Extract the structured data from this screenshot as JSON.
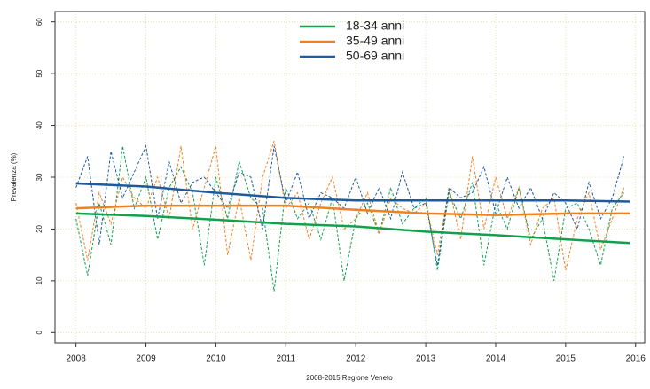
{
  "chart_data": {
    "type": "line",
    "x_label": "2008-2015 Regione Veneto",
    "y_label": "Prevalenza (%)",
    "xlim": [
      2007.7,
      2016.13
    ],
    "ylim": [
      -2,
      62
    ],
    "xticks": [
      2008,
      2009,
      2010,
      2011,
      2012,
      2013,
      2014,
      2015,
      2016
    ],
    "yticks": [
      0,
      10,
      20,
      30,
      40,
      50,
      60
    ],
    "grid": true,
    "legend": "top",
    "x": [
      2008,
      2008.167,
      2008.333,
      2008.5,
      2008.667,
      2008.833,
      2009,
      2009.167,
      2009.333,
      2009.5,
      2009.667,
      2009.833,
      2010,
      2010.167,
      2010.333,
      2010.5,
      2010.667,
      2010.833,
      2011,
      2011.167,
      2011.333,
      2011.5,
      2011.667,
      2011.833,
      2012,
      2012.167,
      2012.333,
      2012.5,
      2012.667,
      2012.833,
      2013,
      2013.167,
      2013.333,
      2013.5,
      2013.667,
      2013.833,
      2014,
      2014.167,
      2014.333,
      2014.5,
      2014.667,
      2014.833,
      2015,
      2015.167,
      2015.333,
      2015.5,
      2015.667,
      2015.833
    ],
    "series": [
      {
        "color": "#12a04e",
        "style": "dashed",
        "values": [
          22,
          11,
          25,
          17,
          36,
          24,
          30,
          18,
          28,
          32,
          27,
          13,
          30,
          22,
          33,
          26,
          24,
          8,
          28,
          22,
          25,
          18,
          26,
          10,
          22,
          25,
          19,
          28,
          21,
          24,
          26,
          12,
          27,
          22,
          29,
          13,
          25,
          20,
          28,
          18,
          22,
          10,
          24,
          25,
          20,
          13,
          24,
          27
        ]
      },
      {
        "color": "#ee8220",
        "style": "dashed",
        "values": [
          25,
          14,
          27,
          21,
          30,
          26,
          24,
          30,
          22,
          36,
          20,
          28,
          36,
          15,
          26,
          14,
          30,
          37,
          24,
          27,
          18,
          25,
          30,
          20,
          22,
          27,
          19,
          26,
          24,
          23,
          25,
          15,
          28,
          18,
          34,
          20,
          30,
          22,
          28,
          17,
          24,
          26,
          12,
          22,
          27,
          16,
          22,
          28
        ]
      },
      {
        "color": "#1e5a9c",
        "style": "dashed",
        "values": [
          28,
          34,
          17,
          35,
          26,
          31,
          36,
          22,
          33,
          25,
          29,
          30,
          27,
          24,
          31,
          30,
          20,
          36,
          25,
          31,
          22,
          27,
          26,
          24,
          30,
          23,
          28,
          22,
          31,
          24,
          25,
          13,
          28,
          26,
          27,
          32,
          23,
          30,
          24,
          28,
          22,
          27,
          25,
          20,
          29,
          22,
          26,
          34
        ]
      },
      {
        "name": "18-34 anni",
        "color": "#12a04e",
        "style": "solid",
        "x": [
          2008,
          2009,
          2010,
          2011,
          2012,
          2013,
          2014,
          2015,
          2015.917
        ],
        "values": [
          23,
          22.5,
          21.8,
          21,
          20.5,
          19.5,
          18.8,
          18,
          17.3
        ]
      },
      {
        "name": "35-49 anni",
        "color": "#ee8220",
        "style": "solid",
        "x": [
          2008,
          2009,
          2010,
          2011,
          2012,
          2013,
          2014,
          2015,
          2015.917
        ],
        "values": [
          24,
          24.5,
          24.5,
          24.5,
          23.7,
          23,
          22.7,
          23,
          23
        ]
      },
      {
        "name": "50-69 anni",
        "color": "#1e5a9c",
        "style": "solid",
        "x": [
          2008,
          2009,
          2010,
          2011,
          2012,
          2013,
          2014,
          2015,
          2015.917
        ],
        "values": [
          28.8,
          28.2,
          27,
          26,
          25.5,
          25.5,
          25.5,
          25.5,
          25.3
        ]
      }
    ]
  }
}
